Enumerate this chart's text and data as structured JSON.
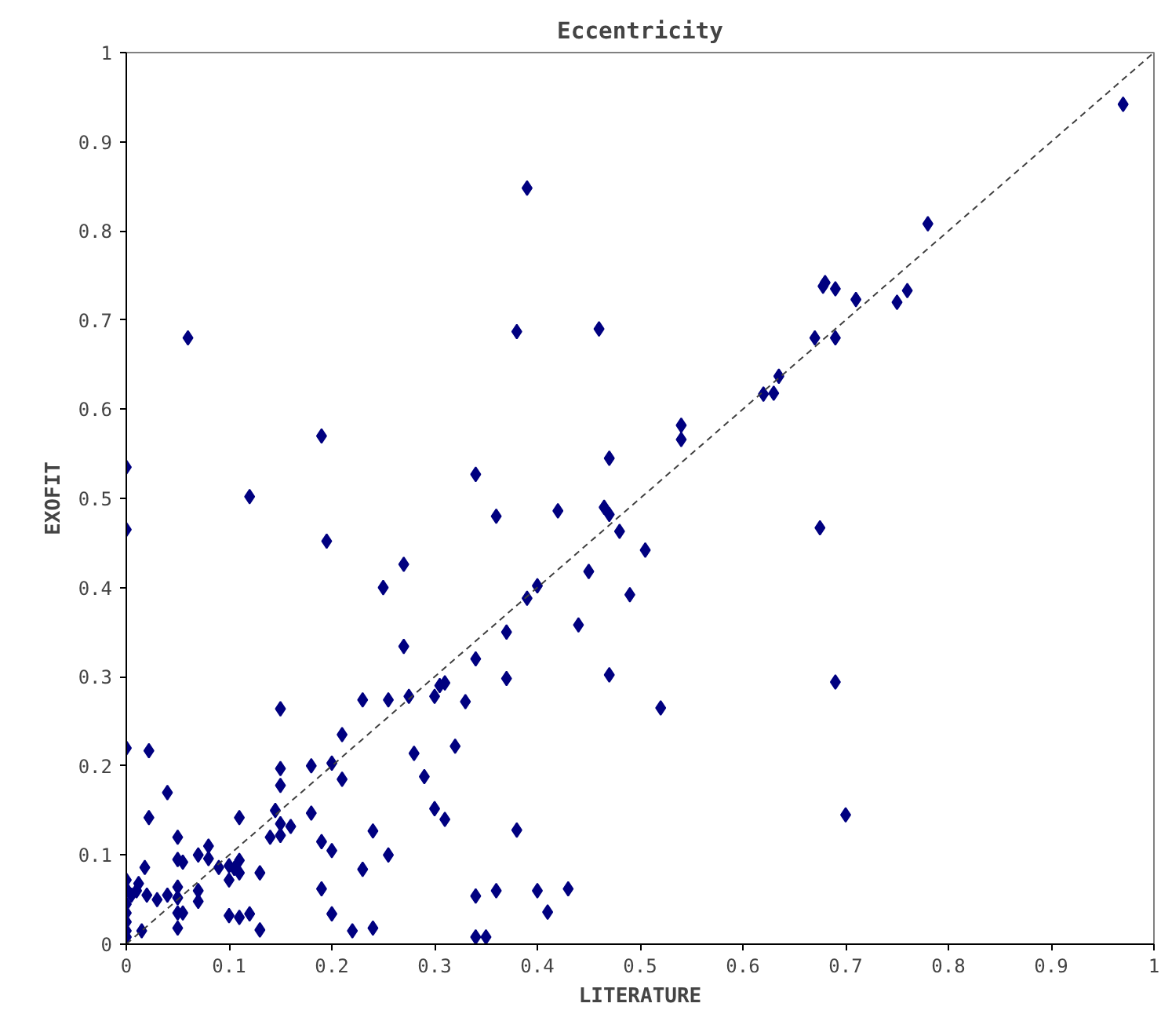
{
  "chart_data": {
    "type": "scatter",
    "title": "Eccentricity",
    "xlabel": "LITERATURE",
    "ylabel": "EXOFIT",
    "xlim": [
      0,
      1
    ],
    "ylim": [
      0,
      1
    ],
    "xticks": [
      0,
      0.1,
      0.2,
      0.3,
      0.4,
      0.5,
      0.6,
      0.7,
      0.8,
      0.9,
      1
    ],
    "yticks": [
      0,
      0.1,
      0.2,
      0.3,
      0.4,
      0.5,
      0.6,
      0.7,
      0.8,
      0.9,
      1
    ],
    "grid": false,
    "series": [
      {
        "color": "#000080",
        "marker": "diamond",
        "x": [
          0,
          0,
          0,
          0,
          0,
          0,
          0,
          0,
          0,
          0,
          0.005,
          0.01,
          0.012,
          0.015,
          0.018,
          0.02,
          0.022,
          0.022,
          0.03,
          0.04,
          0.04,
          0.05,
          0.05,
          0.05,
          0.05,
          0.05,
          0.05,
          0.055,
          0.055,
          0.06,
          0.07,
          0.07,
          0.07,
          0.08,
          0.08,
          0.09,
          0.1,
          0.1,
          0.1,
          0.105,
          0.11,
          0.11,
          0.11,
          0.11,
          0.12,
          0.12,
          0.13,
          0.13,
          0.14,
          0.145,
          0.15,
          0.15,
          0.15,
          0.15,
          0.15,
          0.16,
          0.18,
          0.18,
          0.19,
          0.19,
          0.19,
          0.195,
          0.2,
          0.2,
          0.2,
          0.21,
          0.21,
          0.22,
          0.23,
          0.23,
          0.24,
          0.24,
          0.25,
          0.255,
          0.255,
          0.27,
          0.27,
          0.275,
          0.28,
          0.29,
          0.3,
          0.3,
          0.305,
          0.31,
          0.31,
          0.32,
          0.33,
          0.34,
          0.34,
          0.34,
          0.34,
          0.35,
          0.36,
          0.36,
          0.37,
          0.37,
          0.38,
          0.38,
          0.39,
          0.39,
          0.4,
          0.4,
          0.41,
          0.42,
          0.43,
          0.44,
          0.45,
          0.46,
          0.465,
          0.47,
          0.47,
          0.47,
          0.48,
          0.49,
          0.505,
          0.52,
          0.54,
          0.54,
          0.62,
          0.63,
          0.635,
          0.67,
          0.675,
          0.678,
          0.68,
          0.69,
          0.69,
          0.69,
          0.7,
          0.71,
          0.75,
          0.76,
          0.78,
          0.97
        ],
        "values": [
          0.535,
          0.465,
          0.22,
          0.072,
          0.062,
          0.045,
          0.035,
          0.025,
          0.015,
          0.008,
          0.055,
          0.06,
          0.068,
          0.015,
          0.086,
          0.055,
          0.142,
          0.217,
          0.05,
          0.17,
          0.055,
          0.12,
          0.095,
          0.064,
          0.052,
          0.035,
          0.018,
          0.035,
          0.092,
          0.68,
          0.1,
          0.06,
          0.048,
          0.11,
          0.096,
          0.086,
          0.088,
          0.072,
          0.032,
          0.085,
          0.094,
          0.142,
          0.08,
          0.03,
          0.502,
          0.034,
          0.08,
          0.016,
          0.12,
          0.15,
          0.264,
          0.197,
          0.178,
          0.135,
          0.122,
          0.132,
          0.2,
          0.147,
          0.57,
          0.115,
          0.062,
          0.452,
          0.203,
          0.105,
          0.034,
          0.235,
          0.185,
          0.015,
          0.274,
          0.084,
          0.127,
          0.018,
          0.4,
          0.274,
          0.1,
          0.426,
          0.334,
          0.278,
          0.214,
          0.188,
          0.278,
          0.152,
          0.29,
          0.293,
          0.14,
          0.222,
          0.272,
          0.527,
          0.32,
          0.054,
          0.008,
          0.008,
          0.48,
          0.06,
          0.35,
          0.298,
          0.687,
          0.128,
          0.848,
          0.388,
          0.402,
          0.06,
          0.036,
          0.486,
          0.062,
          0.358,
          0.418,
          0.69,
          0.49,
          0.545,
          0.482,
          0.302,
          0.463,
          0.392,
          0.442,
          0.265,
          0.582,
          0.566,
          0.617,
          0.618,
          0.637,
          0.68,
          0.467,
          0.738,
          0.742,
          0.735,
          0.68,
          0.294,
          0.145,
          0.723,
          0.72,
          0.733,
          0.808,
          0.942
        ]
      },
      {
        "type": "line",
        "color": "#404040",
        "line_style": "dashed",
        "x": [
          0,
          1
        ],
        "values": [
          0,
          1
        ]
      }
    ]
  }
}
